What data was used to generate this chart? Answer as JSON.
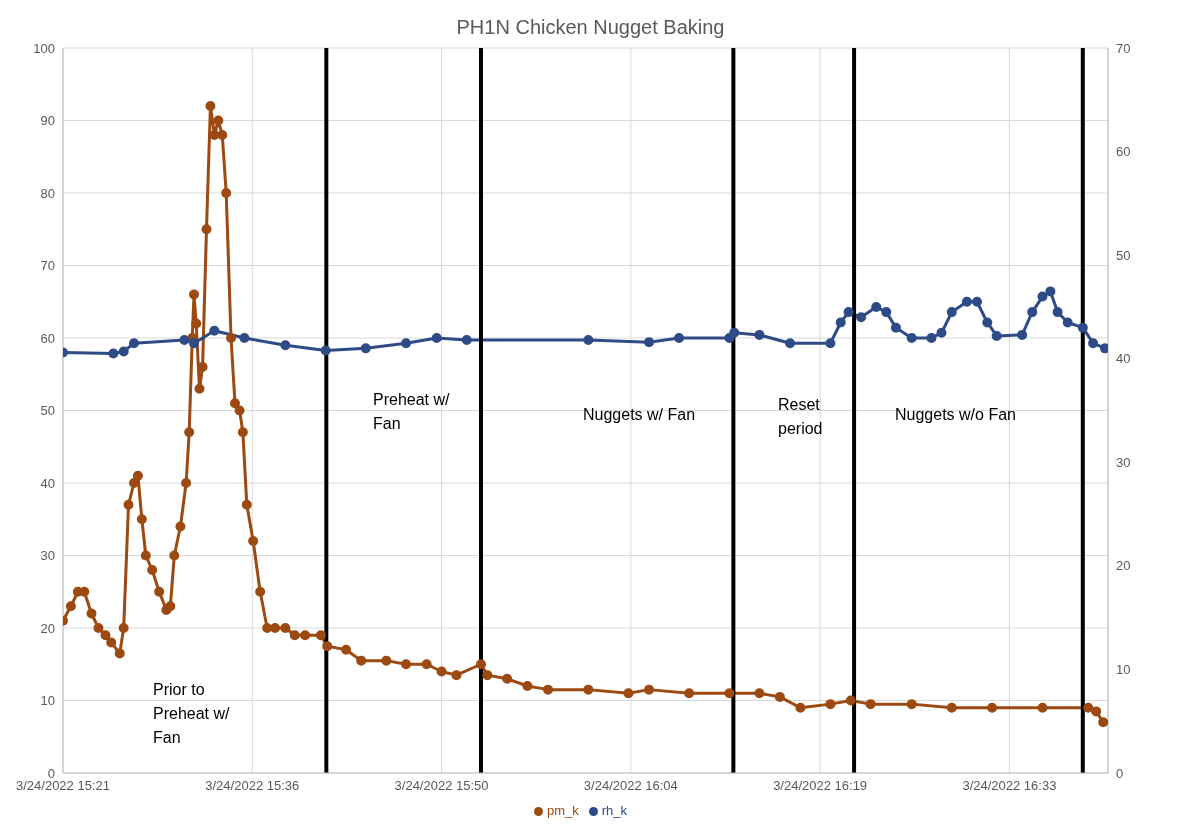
{
  "chart_data": {
    "type": "line",
    "title": "PH1N Chicken Nugget Baking",
    "xlim": [
      "2022-03-24T15:21:36",
      "2022-03-24T16:41:06"
    ],
    "xticks": [
      {
        "value": "2022-03-24T15:21:36",
        "label": "3/24/2022 15:21"
      },
      {
        "value": "2022-03-24T15:36:00",
        "label": "3/24/2022 15:36"
      },
      {
        "value": "2022-03-24T15:50:24",
        "label": "3/24/2022 15:50"
      },
      {
        "value": "2022-03-24T16:04:48",
        "label": "3/24/2022 16:04"
      },
      {
        "value": "2022-03-24T16:19:12",
        "label": "3/24/2022 16:19"
      },
      {
        "value": "2022-03-24T16:33:36",
        "label": "3/24/2022 16:33"
      }
    ],
    "ylim": [
      0,
      100
    ],
    "yticks": [
      0,
      10,
      20,
      30,
      40,
      50,
      60,
      70,
      80,
      90,
      100
    ],
    "y2lim": [
      0,
      70
    ],
    "y2ticks": [
      0,
      10,
      20,
      30,
      40,
      50,
      60,
      70
    ],
    "grid": true,
    "legend": "bottom",
    "marker": "circle",
    "series": [
      {
        "name": "pm_k",
        "color": "#9c4a12",
        "x": [
          "2022-03-24T15:21:36",
          "2022-03-24T15:22:12",
          "2022-03-24T15:22:44",
          "2022-03-24T15:23:13",
          "2022-03-24T15:23:46",
          "2022-03-24T15:24:18",
          "2022-03-24T15:24:50",
          "2022-03-24T15:25:16",
          "2022-03-24T15:25:55",
          "2022-03-24T15:26:13",
          "2022-03-24T15:26:35",
          "2022-03-24T15:27:00",
          "2022-03-24T15:27:18",
          "2022-03-24T15:27:36",
          "2022-03-24T15:27:54",
          "2022-03-24T15:28:23",
          "2022-03-24T15:28:55",
          "2022-03-24T15:29:28",
          "2022-03-24T15:29:46",
          "2022-03-24T15:30:04",
          "2022-03-24T15:30:32",
          "2022-03-24T15:30:58",
          "2022-03-24T15:31:12",
          "2022-03-24T15:31:26",
          "2022-03-24T15:31:34",
          "2022-03-24T15:31:44",
          "2022-03-24T15:31:59",
          "2022-03-24T15:32:13",
          "2022-03-24T15:32:31",
          "2022-03-24T15:32:49",
          "2022-03-24T15:33:07",
          "2022-03-24T15:33:25",
          "2022-03-24T15:33:43",
          "2022-03-24T15:34:01",
          "2022-03-24T15:34:23",
          "2022-03-24T15:34:41",
          "2022-03-24T15:35:02",
          "2022-03-24T15:35:17",
          "2022-03-24T15:35:35",
          "2022-03-24T15:36:04",
          "2022-03-24T15:36:36",
          "2022-03-24T15:37:08",
          "2022-03-24T15:37:44",
          "2022-03-24T15:38:31",
          "2022-03-24T15:39:14",
          "2022-03-24T15:40:01",
          "2022-03-24T15:41:13",
          "2022-03-24T15:41:42",
          "2022-03-24T15:43:08",
          "2022-03-24T15:44:17",
          "2022-03-24T15:46:12",
          "2022-03-24T15:47:42",
          "2022-03-24T15:49:16",
          "2022-03-24T15:50:24",
          "2022-03-24T15:51:32",
          "2022-03-24T15:53:24",
          "2022-03-24T15:53:53",
          "2022-03-24T15:55:23",
          "2022-03-24T15:56:56",
          "2022-03-24T15:58:30",
          "2022-03-24T16:01:34",
          "2022-03-24T16:04:37",
          "2022-03-24T16:06:11",
          "2022-03-24T16:09:14",
          "2022-03-24T16:12:18",
          "2022-03-24T16:14:35",
          "2022-03-24T16:16:08",
          "2022-03-24T16:17:42",
          "2022-03-24T16:19:59",
          "2022-03-24T16:21:32",
          "2022-03-24T16:23:02",
          "2022-03-24T16:26:10",
          "2022-03-24T16:29:13",
          "2022-03-24T16:32:17",
          "2022-03-24T16:36:07",
          "2022-03-24T16:39:36",
          "2022-03-24T16:40:12",
          "2022-03-24T16:40:44"
        ],
        "values": [
          21,
          23,
          25,
          25,
          22,
          20,
          19,
          18,
          16.5,
          20,
          37,
          40,
          41,
          35,
          30,
          28,
          25,
          22.5,
          23,
          30,
          34,
          40,
          47,
          60,
          66,
          62,
          53,
          56,
          75,
          92,
          88,
          90,
          88,
          80,
          60,
          51,
          50,
          47,
          37,
          32,
          25,
          20,
          20,
          20,
          19,
          19,
          19,
          17.5,
          17,
          15.5,
          15.5,
          15,
          15,
          14,
          13.5,
          15,
          13.5,
          13,
          12,
          11.5,
          11.5,
          11,
          11.5,
          11,
          11,
          11,
          10.5,
          9,
          9.5,
          10,
          9.5,
          9.5,
          9,
          9,
          9,
          9,
          8.5,
          7
        ]
      },
      {
        "name": "rh_k",
        "color": "#2f4b87",
        "axis": "y2",
        "x": [
          "2022-03-24T15:21:36",
          "2022-03-24T15:25:26",
          "2022-03-24T15:26:13",
          "2022-03-24T15:27:00",
          "2022-03-24T15:30:50",
          "2022-03-24T15:31:34",
          "2022-03-24T15:33:07",
          "2022-03-24T15:35:24",
          "2022-03-24T15:38:31",
          "2022-03-24T15:41:35",
          "2022-03-24T15:44:38",
          "2022-03-24T15:47:42",
          "2022-03-24T15:50:02",
          "2022-03-24T15:52:19",
          "2022-03-24T16:01:34",
          "2022-03-24T16:06:11",
          "2022-03-24T16:08:28",
          "2022-03-24T16:12:18",
          "2022-03-24T16:12:40",
          "2022-03-24T16:14:35",
          "2022-03-24T16:16:55",
          "2022-03-24T16:19:59",
          "2022-03-24T16:20:46",
          "2022-03-24T16:21:22",
          "2022-03-24T16:22:19",
          "2022-03-24T16:23:28",
          "2022-03-24T16:24:14",
          "2022-03-24T16:24:58",
          "2022-03-24T16:26:10",
          "2022-03-24T16:27:40",
          "2022-03-24T16:28:26",
          "2022-03-24T16:29:13",
          "2022-03-24T16:30:22",
          "2022-03-24T16:31:08",
          "2022-03-24T16:31:55",
          "2022-03-24T16:32:38",
          "2022-03-24T16:34:34",
          "2022-03-24T16:35:20",
          "2022-03-24T16:36:07",
          "2022-03-24T16:36:43",
          "2022-03-24T16:37:16",
          "2022-03-24T16:38:02",
          "2022-03-24T16:39:11",
          "2022-03-24T16:39:58",
          "2022-03-24T16:40:52"
        ],
        "values": [
          40.6,
          40.5,
          40.7,
          41.5,
          41.8,
          41.5,
          42.7,
          42,
          41.3,
          40.8,
          41,
          41.5,
          42,
          41.8,
          41.8,
          41.6,
          42,
          42,
          42.5,
          42.3,
          41.5,
          41.5,
          43.5,
          44.5,
          44,
          45,
          44.5,
          43,
          42,
          42,
          42.5,
          44.5,
          45.5,
          45.5,
          43.5,
          42.2,
          42.3,
          44.5,
          46,
          46.5,
          44.5,
          43.5,
          43,
          41.5,
          41
        ]
      }
    ],
    "ref_lines": [
      {
        "axis": "x",
        "value": "2022-03-24T15:41:38",
        "color": "#000000"
      },
      {
        "axis": "x",
        "value": "2022-03-24T15:53:24",
        "color": "#000000"
      },
      {
        "axis": "x",
        "value": "2022-03-24T16:12:36",
        "color": "#000000"
      },
      {
        "axis": "x",
        "value": "2022-03-24T16:21:47",
        "color": "#000000"
      },
      {
        "axis": "x",
        "value": "2022-03-24T16:39:11",
        "color": "#000000"
      }
    ],
    "annotations": [
      "Prior to Preheat w/ Fan",
      "Preheat w/ Fan",
      "Nuggets w/ Fan",
      "Reset period",
      "Nuggets w/o Fan"
    ]
  }
}
